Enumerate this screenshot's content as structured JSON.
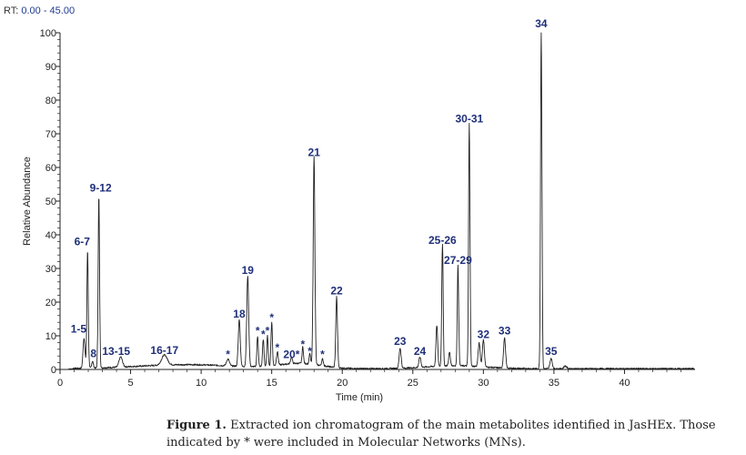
{
  "rt_label": "RT:",
  "rt_range": "0.00 - 45.00",
  "caption": {
    "label": "Figure 1.",
    "text": "Extracted ion chromatogram of the main metabolites identified in JasHEx. Those indicated by * were included in Molecular Networks (MNs)."
  },
  "colors": {
    "trace": "#222222",
    "labels": "#1f2f78",
    "axis": "#222222"
  },
  "chart_data": {
    "type": "line",
    "xlabel": "Time (min)",
    "ylabel": "Relative Abundance",
    "xlim": [
      0,
      45
    ],
    "ylim": [
      0,
      100
    ],
    "x_ticks": [
      0,
      5,
      10,
      15,
      20,
      25,
      30,
      35,
      40
    ],
    "y_ticks": [
      0,
      10,
      20,
      30,
      40,
      50,
      60,
      70,
      80,
      90,
      100
    ],
    "grid": false,
    "peaks": [
      {
        "label": "1-5",
        "rt": 1.7,
        "height": 9,
        "width": 0.07,
        "show": true
      },
      {
        "label": "6-7",
        "rt": 1.95,
        "height": 35,
        "width": 0.05,
        "show": true
      },
      {
        "label": "8",
        "rt": 2.3,
        "height": 2,
        "width": 0.06,
        "show": true
      },
      {
        "label": "9-12",
        "rt": 2.75,
        "height": 51,
        "width": 0.05,
        "show": true
      },
      {
        "label": "13-15",
        "rt": 4.3,
        "height": 3,
        "width": 0.12,
        "show": true
      },
      {
        "label": "16-17",
        "rt": 7.4,
        "height": 3,
        "width": 0.2,
        "show": true
      },
      {
        "label": "*",
        "rt": 11.9,
        "height": 2,
        "width": 0.1,
        "show": true
      },
      {
        "label": "18",
        "rt": 12.7,
        "height": 14,
        "width": 0.07,
        "show": true
      },
      {
        "label": "19",
        "rt": 13.3,
        "height": 27,
        "width": 0.07,
        "show": true
      },
      {
        "label": "*",
        "rt": 14.0,
        "height": 9,
        "width": 0.05,
        "show": true
      },
      {
        "label": "*",
        "rt": 14.4,
        "height": 8,
        "width": 0.05,
        "show": true
      },
      {
        "label": "*",
        "rt": 14.7,
        "height": 9,
        "width": 0.05,
        "show": true
      },
      {
        "label": "*",
        "rt": 15.0,
        "height": 13,
        "width": 0.05,
        "show": true
      },
      {
        "label": "*",
        "rt": 15.4,
        "height": 4,
        "width": 0.06,
        "show": true
      },
      {
        "label": "20*",
        "rt": 16.4,
        "height": 2,
        "width": 0.06,
        "show": true
      },
      {
        "label": "*",
        "rt": 17.2,
        "height": 5,
        "width": 0.05,
        "show": true
      },
      {
        "label": "*",
        "rt": 17.7,
        "height": 3,
        "width": 0.05,
        "show": true
      },
      {
        "label": "21",
        "rt": 18.0,
        "height": 62,
        "width": 0.06,
        "show": true
      },
      {
        "label": "*",
        "rt": 18.6,
        "height": 2,
        "width": 0.06,
        "show": true
      },
      {
        "label": "22",
        "rt": 19.6,
        "height": 21,
        "width": 0.06,
        "show": true
      },
      {
        "label": "23",
        "rt": 24.1,
        "height": 6,
        "width": 0.07,
        "show": true
      },
      {
        "label": "24",
        "rt": 25.5,
        "height": 3,
        "width": 0.07,
        "show": true
      },
      {
        "label": "",
        "rt": 26.7,
        "height": 12,
        "width": 0.06,
        "show": false
      },
      {
        "label": "25-26",
        "rt": 27.1,
        "height": 36,
        "width": 0.05,
        "show": true
      },
      {
        "label": "",
        "rt": 27.6,
        "height": 4,
        "width": 0.06,
        "show": false
      },
      {
        "label": "27-29",
        "rt": 28.2,
        "height": 30,
        "width": 0.05,
        "show": true
      },
      {
        "label": "30-31",
        "rt": 29.0,
        "height": 72,
        "width": 0.05,
        "show": true
      },
      {
        "label": "",
        "rt": 29.7,
        "height": 7,
        "width": 0.07,
        "show": false
      },
      {
        "label": "32",
        "rt": 30.0,
        "height": 8,
        "width": 0.07,
        "show": true
      },
      {
        "label": "33",
        "rt": 31.5,
        "height": 9,
        "width": 0.07,
        "show": true
      },
      {
        "label": "34",
        "rt": 34.1,
        "height": 100,
        "width": 0.05,
        "show": true
      },
      {
        "label": "35",
        "rt": 34.8,
        "height": 3,
        "width": 0.08,
        "show": true
      },
      {
        "label": "",
        "rt": 35.8,
        "height": 0.8,
        "width": 0.1,
        "show": false
      }
    ]
  }
}
